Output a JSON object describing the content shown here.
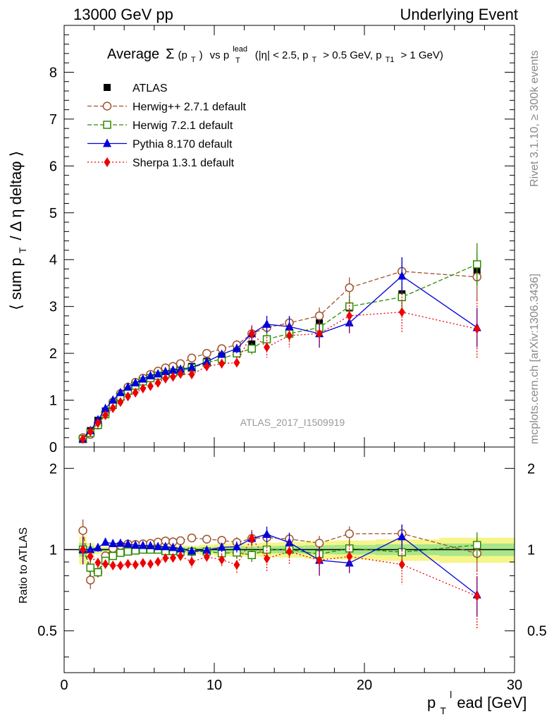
{
  "header": {
    "left": "13000 GeV pp",
    "right": "Underlying Event"
  },
  "side": {
    "rivet": "Rivet 3.1.10, ≥ 300k events",
    "mcplots": "mcplots.cern.ch [arXiv:1306.3436]"
  },
  "chart_data": {
    "type": "scatter",
    "title": "Average Σ(p_T) vs p_T^lead (|η| < 2.5, p_T > 0.5 GeV, p_T1 > 1 GeV)",
    "title_parts": {
      "average": "Average",
      "sigma": "Σ",
      "pt_open": "(p",
      "pt_sub": "T",
      "pt_close": ")",
      "vs": "vs p",
      "lead_sup": "lead",
      "lead_sub": "T",
      "cuts": "(|η| < 2.5, p",
      "cuts_sub1": "T",
      "cuts_mid": "> 0.5 GeV, p",
      "cuts_sub2": "T1",
      "cuts_end": "> 1 GeV)"
    },
    "watermark": "ATLAS_2017_I1509919",
    "xlabel": {
      "main": "p",
      "sub": "T",
      "sup": "l",
      "rest": "ead [GeV]"
    },
    "ylabel": {
      "open": "⟨ sum p",
      "sub": "T",
      "rest": "/ Δ η deltaφ ⟩"
    },
    "ratio_ylabel": "Ratio to ATLAS",
    "xlim": [
      0,
      30
    ],
    "ylim": [
      0,
      9
    ],
    "ratio_ylim": [
      0.35,
      2.4
    ],
    "x_ticks": [
      "0",
      "10",
      "20",
      "30"
    ],
    "y_ticks": [
      "0",
      "1",
      "2",
      "3",
      "4",
      "5",
      "6",
      "7",
      "8"
    ],
    "ratio_ticks": [
      "0.5",
      "1",
      "2"
    ],
    "x": [
      1.25,
      1.75,
      2.25,
      2.75,
      3.25,
      3.75,
      4.25,
      4.75,
      5.25,
      5.75,
      6.25,
      6.75,
      7.25,
      7.75,
      8.5,
      9.5,
      10.5,
      11.5,
      12.5,
      13.5,
      15.0,
      17.0,
      19.0,
      22.5,
      27.5
    ],
    "series": [
      {
        "name": "ATLAS",
        "color": "#000000",
        "values": [
          0.17,
          0.35,
          0.57,
          0.77,
          0.95,
          1.1,
          1.22,
          1.32,
          1.4,
          1.47,
          1.52,
          1.57,
          1.61,
          1.65,
          1.72,
          1.83,
          1.94,
          2.05,
          2.2,
          2.3,
          2.42,
          2.65,
          2.97,
          3.27,
          3.75
        ],
        "errors": [
          0.01,
          0.01,
          0.01,
          0.01,
          0.01,
          0.01,
          0.01,
          0.02,
          0.02,
          0.02,
          0.02,
          0.02,
          0.03,
          0.03,
          0.03,
          0.04,
          0.05,
          0.06,
          0.06,
          0.07,
          0.08,
          0.1,
          0.12,
          0.15,
          0.2
        ]
      },
      {
        "name": "Herwig++ 2.7.1 default",
        "color": "#a0522d",
        "values": [
          0.2,
          0.27,
          0.47,
          0.73,
          0.96,
          1.14,
          1.28,
          1.38,
          1.47,
          1.55,
          1.62,
          1.69,
          1.72,
          1.78,
          1.9,
          2.0,
          2.1,
          2.18,
          2.42,
          2.55,
          2.65,
          2.8,
          3.4,
          3.75,
          3.63
        ],
        "errors": [
          0.02,
          0.02,
          0.02,
          0.02,
          0.03,
          0.03,
          0.03,
          0.03,
          0.03,
          0.03,
          0.04,
          0.04,
          0.05,
          0.05,
          0.06,
          0.07,
          0.08,
          0.1,
          0.12,
          0.15,
          0.15,
          0.18,
          0.22,
          0.3,
          0.5
        ]
      },
      {
        "name": "Herwig 7.2.1 default",
        "color": "#2e8b00",
        "values": [
          0.17,
          0.3,
          0.47,
          0.7,
          0.9,
          1.07,
          1.2,
          1.31,
          1.4,
          1.47,
          1.52,
          1.55,
          1.59,
          1.62,
          1.69,
          1.8,
          1.88,
          2.0,
          2.1,
          2.3,
          2.42,
          2.55,
          3.0,
          3.2,
          3.9
        ],
        "errors": [
          0.02,
          0.02,
          0.02,
          0.02,
          0.03,
          0.03,
          0.03,
          0.03,
          0.03,
          0.03,
          0.04,
          0.04,
          0.05,
          0.05,
          0.06,
          0.07,
          0.08,
          0.1,
          0.12,
          0.15,
          0.15,
          0.18,
          0.22,
          0.3,
          0.45
        ]
      },
      {
        "name": "Pythia 8.170 default",
        "color": "#0000dd",
        "values": [
          0.17,
          0.35,
          0.58,
          0.82,
          1.0,
          1.16,
          1.28,
          1.37,
          1.45,
          1.52,
          1.56,
          1.61,
          1.64,
          1.66,
          1.7,
          1.82,
          1.98,
          2.1,
          2.42,
          2.62,
          2.57,
          2.42,
          2.65,
          3.65,
          2.55
        ],
        "errors": [
          0.02,
          0.02,
          0.02,
          0.02,
          0.03,
          0.03,
          0.03,
          0.03,
          0.03,
          0.03,
          0.04,
          0.04,
          0.05,
          0.05,
          0.06,
          0.07,
          0.08,
          0.1,
          0.15,
          0.18,
          0.22,
          0.3,
          0.22,
          0.4,
          0.42
        ]
      },
      {
        "name": "Sherpa 1.3.1 default",
        "color": "#ee0000",
        "values": [
          0.17,
          0.33,
          0.51,
          0.68,
          0.83,
          0.96,
          1.08,
          1.16,
          1.25,
          1.3,
          1.37,
          1.46,
          1.5,
          1.56,
          1.55,
          1.72,
          1.78,
          1.8,
          2.42,
          2.13,
          2.38,
          2.42,
          2.8,
          2.88,
          2.52
        ],
        "errors": [
          0.02,
          0.02,
          0.02,
          0.02,
          0.03,
          0.03,
          0.03,
          0.03,
          0.03,
          0.03,
          0.04,
          0.04,
          0.05,
          0.05,
          0.08,
          0.08,
          0.1,
          0.12,
          0.18,
          0.22,
          0.25,
          0.3,
          0.35,
          0.45,
          0.62
        ]
      }
    ]
  }
}
